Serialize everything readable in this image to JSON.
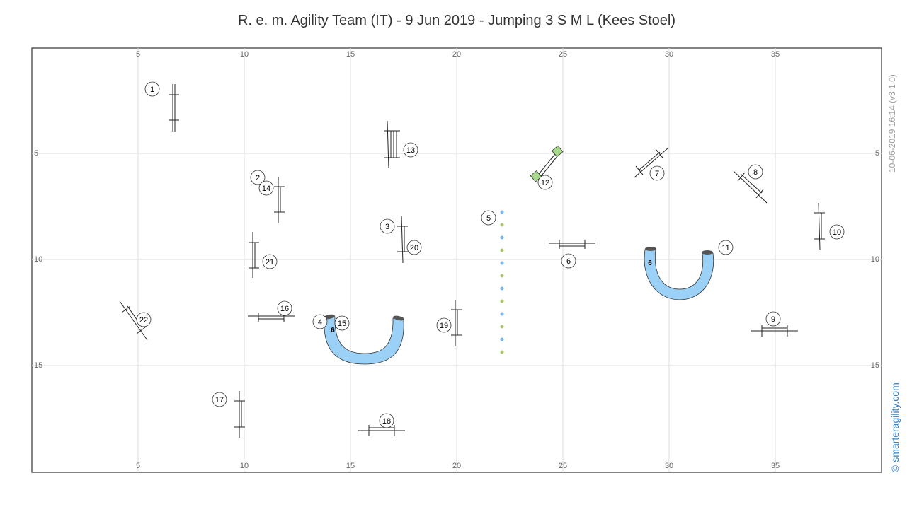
{
  "title": "R. e. m. Agility Team (IT) - 9 Jun 2019 - Jumping 3 S M L (Kees Stoel)",
  "side_date": "10-06-2019 16:14  (v3.1.0)",
  "copyright": "© smarteragility.com",
  "grid": {
    "x_ticks": [
      "5",
      "10",
      "15",
      "20",
      "25",
      "30",
      "35"
    ],
    "y_ticks": [
      "5",
      "10",
      "15"
    ]
  },
  "tunnel_label": "6",
  "obstacle_numbers": [
    "1",
    "2",
    "3",
    "4",
    "5",
    "6",
    "7",
    "8",
    "9",
    "10",
    "11",
    "12",
    "13",
    "14",
    "15",
    "16",
    "17",
    "18",
    "19",
    "20",
    "21",
    "22"
  ],
  "colors": {
    "tunnel_fill": "#9bd1f7",
    "tunnel_end": "#555555",
    "weave_blue": "#7fb5de",
    "weave_green": "#a9c46a",
    "table_green": "#a8d88a",
    "link": "#2a7fc9"
  }
}
